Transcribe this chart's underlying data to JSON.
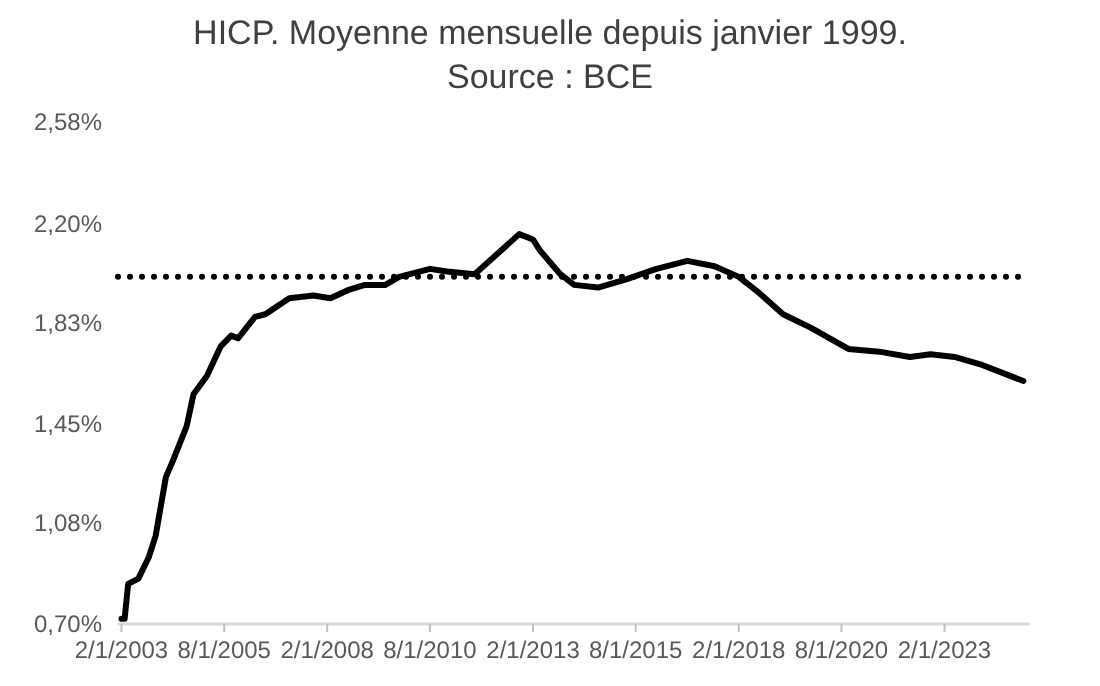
{
  "chart_data": {
    "type": "line",
    "title": "HICP. Moyenne mensuelle depuis janvier 1999.\nSource : BCE",
    "x": [
      "2003-02",
      "2003-03",
      "2003-04",
      "2003-07",
      "2003-10",
      "2003-12",
      "2004-03",
      "2004-05",
      "2004-09",
      "2004-11",
      "2005-03",
      "2005-07",
      "2005-10",
      "2005-12",
      "2006-05",
      "2006-08",
      "2007-03",
      "2007-10",
      "2008-03",
      "2008-08",
      "2009-01",
      "2009-07",
      "2009-11",
      "2010-08",
      "2011-01",
      "2011-09",
      "2012-04",
      "2012-10",
      "2013-02",
      "2013-04",
      "2013-10",
      "2014-02",
      "2014-09",
      "2015-05",
      "2016-02",
      "2016-11",
      "2017-07",
      "2018-02",
      "2018-08",
      "2019-03",
      "2019-11",
      "2020-10",
      "2021-07",
      "2022-04",
      "2022-10",
      "2023-05",
      "2024-01",
      "2024-09",
      "2025-01"
    ],
    "series": [
      {
        "color": "#000000",
        "values": [
          0.72,
          0.72,
          0.85,
          0.87,
          0.95,
          1.03,
          1.25,
          1.31,
          1.44,
          1.56,
          1.63,
          1.74,
          1.78,
          1.77,
          1.85,
          1.86,
          1.92,
          1.93,
          1.92,
          1.95,
          1.97,
          1.97,
          2.0,
          2.03,
          2.02,
          2.01,
          2.09,
          2.16,
          2.14,
          2.1,
          2.01,
          1.97,
          1.96,
          1.99,
          2.03,
          2.06,
          2.04,
          2.0,
          1.94,
          1.86,
          1.81,
          1.73,
          1.72,
          1.7,
          1.71,
          1.7,
          1.67,
          1.63,
          1.61
        ]
      }
    ],
    "xlim": [
      "2003-01",
      "2025-03"
    ],
    "xticks": [
      {
        "value": "2003-02-01",
        "label": "2/1/2003"
      },
      {
        "value": "2005-08-01",
        "label": "8/1/2005"
      },
      {
        "value": "2008-02-01",
        "label": "2/1/2008"
      },
      {
        "value": "2010-08-01",
        "label": "8/1/2010"
      },
      {
        "value": "2013-02-01",
        "label": "2/1/2013"
      },
      {
        "value": "2015-08-01",
        "label": "8/1/2015"
      },
      {
        "value": "2018-02-01",
        "label": "2/1/2018"
      },
      {
        "value": "2020-08-01",
        "label": "8/1/2020"
      },
      {
        "value": "2023-02-01",
        "label": "2/1/2023"
      }
    ],
    "ylim": [
      0.7,
      2.58
    ],
    "yticks": [
      {
        "value": 0.7,
        "label": "0,70%"
      },
      {
        "value": 1.08,
        "label": "1,08%"
      },
      {
        "value": 1.45,
        "label": "1,45%"
      },
      {
        "value": 1.83,
        "label": "1,83%"
      },
      {
        "value": 2.2,
        "label": "2,20%"
      },
      {
        "value": 2.58,
        "label": "2,58%"
      }
    ],
    "ref_lines": [
      {
        "axis": "y",
        "value": 2.0,
        "color": "#000000",
        "line_style": "dotted"
      }
    ],
    "grid": false,
    "marker": "none",
    "line_style": "solid"
  }
}
